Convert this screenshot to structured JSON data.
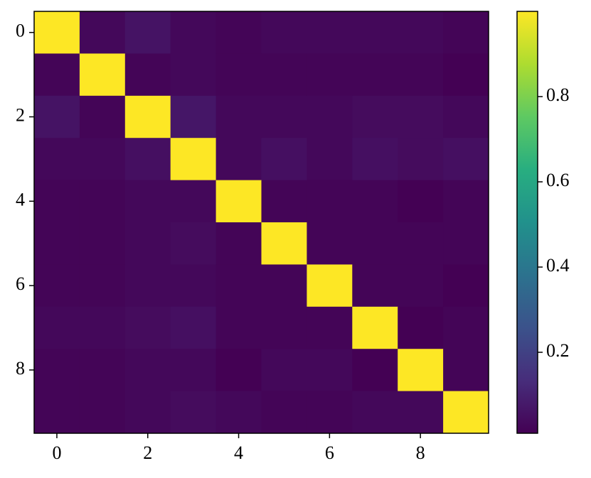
{
  "chart_data": {
    "type": "heatmap",
    "colormap": "viridis",
    "x": [
      0,
      1,
      2,
      3,
      4,
      5,
      6,
      7,
      8,
      9
    ],
    "y": [
      0,
      1,
      2,
      3,
      4,
      5,
      6,
      7,
      8,
      9
    ],
    "z": [
      [
        1.0,
        0.03,
        0.06,
        0.03,
        0.02,
        0.03,
        0.03,
        0.03,
        0.03,
        0.02
      ],
      [
        0.02,
        1.0,
        0.02,
        0.03,
        0.02,
        0.02,
        0.02,
        0.02,
        0.02,
        0.01
      ],
      [
        0.06,
        0.02,
        1.0,
        0.07,
        0.03,
        0.03,
        0.03,
        0.04,
        0.04,
        0.03
      ],
      [
        0.03,
        0.03,
        0.05,
        1.0,
        0.03,
        0.05,
        0.03,
        0.05,
        0.04,
        0.05
      ],
      [
        0.02,
        0.02,
        0.03,
        0.03,
        1.0,
        0.02,
        0.02,
        0.02,
        0.01,
        0.02
      ],
      [
        0.02,
        0.02,
        0.03,
        0.04,
        0.02,
        1.0,
        0.02,
        0.02,
        0.02,
        0.02
      ],
      [
        0.02,
        0.02,
        0.03,
        0.03,
        0.02,
        0.02,
        1.0,
        0.02,
        0.02,
        0.01
      ],
      [
        0.03,
        0.03,
        0.04,
        0.05,
        0.02,
        0.02,
        0.02,
        1.0,
        0.01,
        0.02
      ],
      [
        0.02,
        0.02,
        0.03,
        0.03,
        0.01,
        0.03,
        0.03,
        0.01,
        1.0,
        0.02
      ],
      [
        0.02,
        0.02,
        0.03,
        0.04,
        0.03,
        0.02,
        0.02,
        0.03,
        0.03,
        1.0
      ]
    ],
    "xlim": [
      -0.5,
      9.5
    ],
    "ylim": [
      9.5,
      -0.5
    ],
    "xticks": [
      0,
      2,
      4,
      6,
      8
    ],
    "yticks": [
      0,
      2,
      4,
      6,
      8
    ],
    "clim": [
      0.01,
      1.0
    ],
    "cticks": [
      0.2,
      0.4,
      0.6,
      0.8
    ]
  }
}
